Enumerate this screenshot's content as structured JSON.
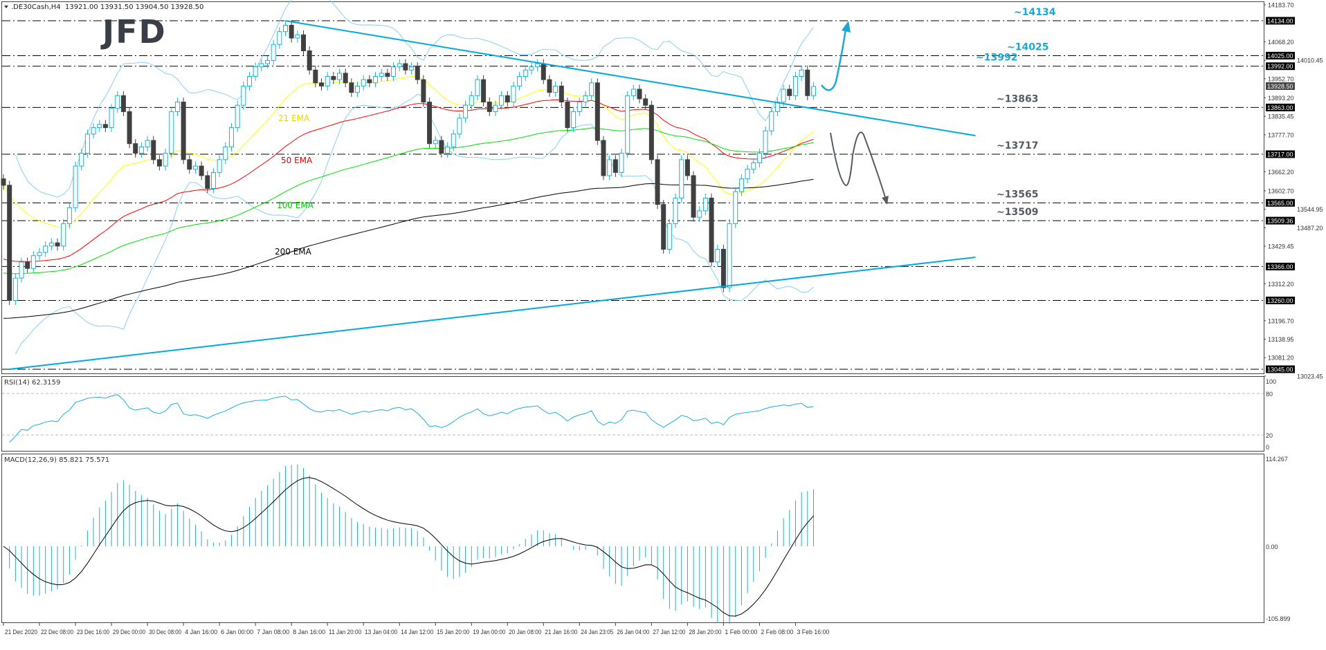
{
  "header": {
    "symbol": ".DE30Cash,H4",
    "ohlc_text": "13921.00 13931.50 13904.50 13928.50"
  },
  "logo": "JFD",
  "ema_labels": {
    "ema21": "21 EMA",
    "ema50": "50 EMA",
    "ema100": "100 EMA",
    "ema200": "200 EMA"
  },
  "colors": {
    "bull": "#1ab0d8",
    "bear": "#404040",
    "ema21": "#ffff00",
    "ema50": "#ff0000",
    "ema100": "#00e000",
    "ema200": "#000000",
    "bollinger": "#87cefa",
    "trendline": "#00a8e0",
    "level_blue": "#1aa7d6",
    "level_gray": "#555b63"
  },
  "rsi": {
    "label": "RSI(14) 62.3159",
    "levels": [
      "100",
      "80",
      "20",
      "0"
    ]
  },
  "macd": {
    "label": "MACD(12,26,9) 85.821 75.571",
    "ticks": [
      "114.267",
      "0.00",
      "-105.899"
    ]
  },
  "chart_data": {
    "type": "candlestick",
    "title": ".DE30Cash,H4",
    "ylim": [
      13023.45,
      14183.7
    ],
    "grid": false,
    "closes": [
      13620,
      13260,
      13330,
      13380,
      13360,
      13400,
      13410,
      13430,
      13440,
      13430,
      13500,
      13550,
      13680,
      13720,
      13780,
      13800,
      13810,
      13800,
      13860,
      13900,
      13850,
      13750,
      13720,
      13740,
      13760,
      13700,
      13680,
      13720,
      13850,
      13880,
      13700,
      13670,
      13680,
      13650,
      13610,
      13660,
      13700,
      13740,
      13800,
      13870,
      13930,
      13960,
      13990,
      14000,
      14010,
      14060,
      14100,
      14120,
      14080,
      14090,
      14040,
      13980,
      13940,
      13930,
      13960,
      13950,
      13970,
      13940,
      13910,
      13930,
      13950,
      13940,
      13960,
      13970,
      13960,
      13990,
      14000,
      13980,
      13990,
      13950,
      13880,
      13750,
      13760,
      13720,
      13740,
      13780,
      13830,
      13870,
      13900,
      13950,
      13880,
      13850,
      13870,
      13900,
      13880,
      13930,
      13960,
      13980,
      13990,
      14000,
      13950,
      13910,
      13930,
      13880,
      13800,
      13850,
      13880,
      13900,
      13940,
      13760,
      13650,
      13700,
      13660,
      13720,
      13900,
      13920,
      13890,
      13870,
      13700,
      13560,
      13420,
      13500,
      13580,
      13700,
      13650,
      13520,
      13540,
      13580,
      13380,
      13420,
      13300,
      13500,
      13600,
      13640,
      13670,
      13690,
      13720,
      13790,
      13850,
      13880,
      13920,
      13900,
      13960,
      13980,
      13900,
      13928.5
    ],
    "last_price": "13928.50",
    "price_ticks": [
      "14183.70",
      "14068.20",
      "14010.45",
      "13952.70",
      "13893.20",
      "13835.45",
      "13777.70",
      "13662.20",
      "13602.70",
      "13544.95",
      "13487.20",
      "13429.45",
      "13312.20",
      "13196.70",
      "13138.95",
      "13081.20",
      "13023.45"
    ],
    "levels": [
      {
        "value": 14134,
        "axis_label": "14134.00",
        "label": "~14134",
        "tone": "blue"
      },
      {
        "value": 14025,
        "axis_label": "14025.00",
        "label": "~14025",
        "tone": "blue"
      },
      {
        "value": 13992,
        "axis_label": "13992.00",
        "label": "~13992",
        "tone": "blue"
      },
      {
        "value": 13863,
        "axis_label": "13863.00",
        "label": "~13863",
        "tone": "gray"
      },
      {
        "value": 13717,
        "axis_label": "13717.00",
        "label": "~13717",
        "tone": "gray"
      },
      {
        "value": 13565,
        "axis_label": "13565.00",
        "label": "~13565",
        "tone": "gray"
      },
      {
        "value": 13509.36,
        "axis_label": "13509.36",
        "label": "~13509",
        "tone": "gray"
      },
      {
        "value": 13366,
        "axis_label": "13366.00",
        "label": "",
        "tone": "gray"
      },
      {
        "value": 13260,
        "axis_label": "13260.00",
        "label": "",
        "tone": "gray"
      },
      {
        "value": 13045,
        "axis_label": "13045.00",
        "label": "",
        "tone": "gray"
      }
    ],
    "trendlines": [
      {
        "from": [
          47,
          14134
        ],
        "to": [
          162,
          13775
        ]
      },
      {
        "from": [
          1,
          13045
        ],
        "to": [
          162,
          13395
        ]
      }
    ],
    "time_labels": [
      "21 Dec 2020",
      "22 Dec 08:00",
      "23 Dec 16:00",
      "29 Dec 00:00",
      "30 Dec 08:00",
      "4 Jan 16:00",
      "6 Jan 00:00",
      "7 Jan 08:00",
      "8 Jan 16:00",
      "11 Jan 20:00",
      "13 Jan 04:00",
      "14 Jan 12:00",
      "15 Jan 20:00",
      "19 Jan 00:00",
      "20 Jan 08:00",
      "21 Jan 16:00",
      "24 Jan 23:05",
      "26 Jan 04:00",
      "27 Jan 12:00",
      "28 Jan 20:00",
      "1 Feb 00:00",
      "2 Feb 08:00",
      "3 Feb 16:00"
    ]
  }
}
